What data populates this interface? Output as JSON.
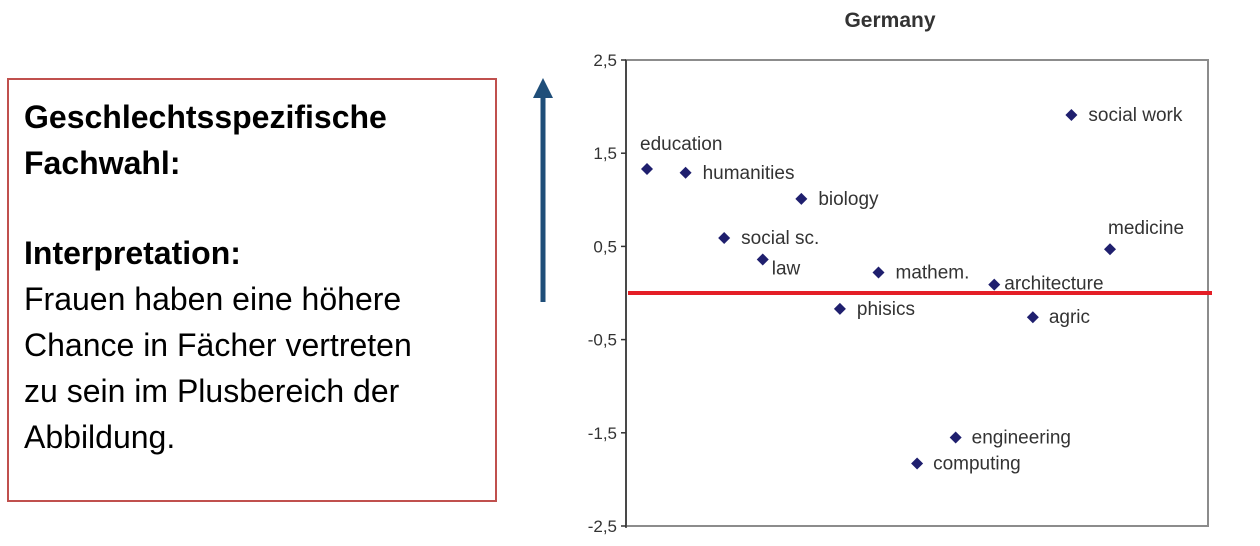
{
  "textbox": {
    "heading_line1": "Geschlechtsspezifische",
    "heading_line2": "Fachwahl:",
    "interpretation_label": "Interpretation:",
    "body_lines": [
      "Frauen haben eine höhere",
      "Chance in Fächer vertreten",
      "zu sein im Plusbereich der",
      "Abbildung."
    ],
    "border_color": "#c0504d"
  },
  "arrow": {
    "direction": "up",
    "color": "#1f4e79"
  },
  "chart_data": {
    "type": "scatter",
    "title": "Germany",
    "xlabel": "",
    "ylabel": "",
    "ylim": [
      -2.5,
      2.5
    ],
    "yticks": [
      "2,5",
      "1,5",
      "0,5",
      "-0,5",
      "-1,5",
      "-2,5"
    ],
    "ytick_values": [
      2.5,
      1.5,
      0.5,
      -0.5,
      -1.5,
      -2.5
    ],
    "grid": false,
    "marker_color": "#1f1f6e",
    "reference_line": {
      "y": 0,
      "color": "#e41e26"
    },
    "points": [
      {
        "label": "education",
        "x": 1,
        "y": 1.33
      },
      {
        "label": "humanities",
        "x": 2,
        "y": 1.29
      },
      {
        "label": "social sc.",
        "x": 3,
        "y": 0.59
      },
      {
        "label": "law",
        "x": 4,
        "y": 0.36
      },
      {
        "label": "biology",
        "x": 5,
        "y": 1.01
      },
      {
        "label": "phisics",
        "x": 6,
        "y": -0.17
      },
      {
        "label": "mathem.",
        "x": 7,
        "y": 0.22
      },
      {
        "label": "computing",
        "x": 8,
        "y": -1.83
      },
      {
        "label": "engineering",
        "x": 9,
        "y": -1.55
      },
      {
        "label": "architecture",
        "x": 10,
        "y": 0.09
      },
      {
        "label": "agric",
        "x": 11,
        "y": -0.26
      },
      {
        "label": "social work",
        "x": 12,
        "y": 1.91
      },
      {
        "label": "medicine",
        "x": 13,
        "y": 0.47
      }
    ]
  }
}
